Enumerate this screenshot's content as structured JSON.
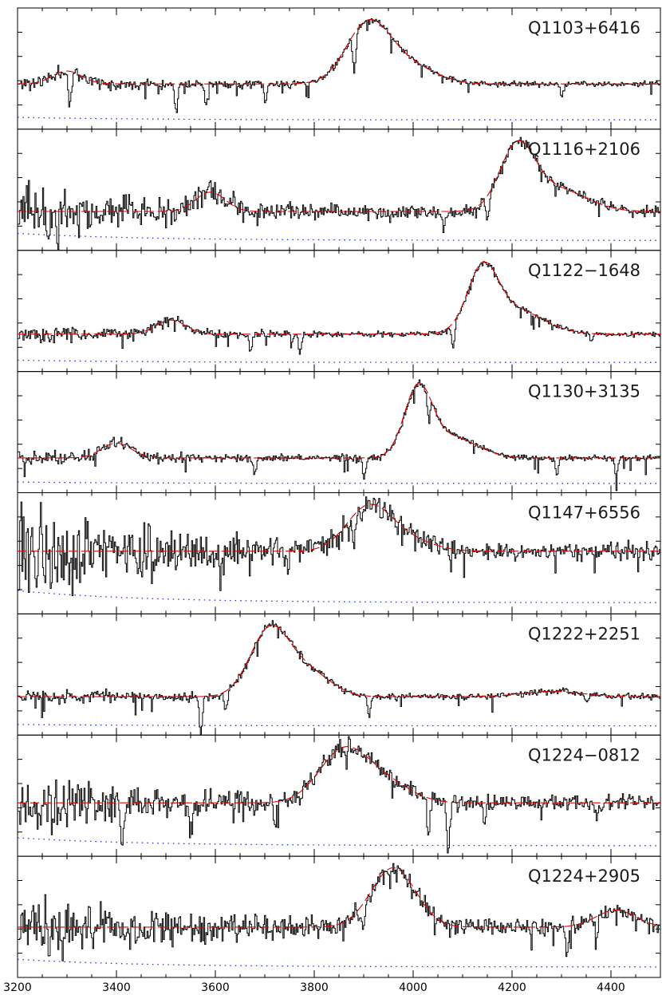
{
  "chart_data": {
    "type": "line",
    "xlim": [
      3200,
      4500
    ],
    "x_ticks": [
      3200,
      3400,
      3600,
      3800,
      4000,
      4200,
      4400
    ],
    "x_tick_labels": [
      "3200",
      "3400",
      "3600",
      "3800",
      "4000",
      "4200",
      "4400"
    ],
    "xlabel": "",
    "ylabel": "",
    "grid": false,
    "colors": {
      "flux": "#000000",
      "fit": "#e00000",
      "error": "#2233dd"
    },
    "panels": [
      {
        "name": "Q1103+6416",
        "seed": 11,
        "baseline": 0.58,
        "blue_noise": 0.06,
        "red_noise": 0.02,
        "noise_falloff": 3500,
        "emission": [
          [
            3300,
            0.2,
            30
          ],
          [
            3910,
            0.95,
            45
          ],
          [
            4000,
            0.25,
            50
          ]
        ],
        "err_level": [
          0.06,
          0.02
        ],
        "absorptions": [
          [
            3305,
            0.55
          ],
          [
            3520,
            0.45
          ],
          [
            3580,
            0.35
          ],
          [
            3700,
            0.3
          ],
          [
            3880,
            0.6
          ],
          [
            4300,
            0.2
          ]
        ]
      },
      {
        "name": "Q1116+2106",
        "seed": 23,
        "baseline": 0.48,
        "blue_noise": 0.22,
        "red_noise": 0.03,
        "noise_falloff": 3550,
        "emission": [
          [
            3590,
            0.3,
            30
          ],
          [
            4210,
            0.95,
            35
          ],
          [
            4290,
            0.35,
            60
          ]
        ],
        "err_level": [
          0.14,
          0.03
        ],
        "absorptions": [
          [
            3260,
            0.5
          ],
          [
            3280,
            0.5
          ],
          [
            4150,
            0.35
          ],
          [
            4060,
            0.25
          ]
        ]
      },
      {
        "name": "Q1122−1648",
        "seed": 37,
        "baseline": 0.52,
        "blue_noise": 0.07,
        "red_noise": 0.02,
        "noise_falloff": 3600,
        "emission": [
          [
            3510,
            0.25,
            30
          ],
          [
            4140,
            1.0,
            30
          ],
          [
            4200,
            0.45,
            60
          ]
        ],
        "err_level": [
          0.06,
          0.02
        ],
        "absorptions": [
          [
            3670,
            0.3
          ],
          [
            3770,
            0.35
          ],
          [
            4080,
            0.45
          ],
          [
            4360,
            0.15
          ]
        ]
      },
      {
        "name": "Q1130+3135",
        "seed": 41,
        "baseline": 0.4,
        "blue_noise": 0.06,
        "red_noise": 0.02,
        "noise_falloff": 3600,
        "emission": [
          [
            3400,
            0.22,
            30
          ],
          [
            4010,
            1.0,
            28
          ],
          [
            4080,
            0.3,
            50
          ]
        ],
        "err_level": [
          0.04,
          0.02
        ],
        "absorptions": [
          [
            3680,
            0.25
          ],
          [
            3900,
            0.3
          ],
          [
            4030,
            0.35
          ],
          [
            4290,
            0.25
          ],
          [
            4410,
            0.25
          ]
        ]
      },
      {
        "name": "Q1147+6556",
        "seed": 53,
        "baseline": 0.5,
        "blue_noise": 0.22,
        "red_noise": 0.04,
        "noise_falloff": 3450,
        "emission": [
          [
            3910,
            0.4,
            45
          ],
          [
            3990,
            0.1,
            50
          ]
        ],
        "err_level": [
          0.14,
          0.03
        ],
        "absorptions": [
          [
            3610,
            0.3
          ],
          [
            3880,
            0.35
          ]
        ]
      },
      {
        "name": "Q1222+2251",
        "seed": 67,
        "baseline": 0.46,
        "blue_noise": 0.06,
        "red_noise": 0.02,
        "noise_falloff": 3550,
        "emission": [
          [
            3710,
            1.0,
            40
          ],
          [
            3790,
            0.35,
            45
          ],
          [
            4280,
            0.08,
            60
          ]
        ],
        "err_level": [
          0.04,
          0.02
        ],
        "absorptions": [
          [
            3570,
            0.55
          ],
          [
            3620,
            0.3
          ],
          [
            3910,
            0.3
          ],
          [
            4350,
            0.1
          ]
        ]
      },
      {
        "name": "Q1224−0812",
        "seed": 79,
        "baseline": 0.52,
        "blue_noise": 0.17,
        "red_noise": 0.04,
        "noise_falloff": 3500,
        "emission": [
          [
            3860,
            0.6,
            50
          ],
          [
            3950,
            0.2,
            50
          ]
        ],
        "err_level": [
          0.12,
          0.03
        ],
        "absorptions": [
          [
            3410,
            0.5
          ],
          [
            3550,
            0.4
          ],
          [
            3720,
            0.3
          ],
          [
            4030,
            0.4
          ],
          [
            4070,
            0.55
          ],
          [
            4370,
            0.15
          ]
        ]
      },
      {
        "name": "Q1224+2905",
        "seed": 97,
        "baseline": 0.5,
        "blue_noise": 0.2,
        "red_noise": 0.04,
        "noise_falloff": 3500,
        "emission": [
          [
            3960,
            0.7,
            45
          ],
          [
            4410,
            0.2,
            40
          ]
        ],
        "err_level": [
          0.12,
          0.03
        ],
        "absorptions": [
          [
            3290,
            0.4
          ],
          [
            3900,
            0.3
          ],
          [
            4310,
            0.3
          ],
          [
            4370,
            0.25
          ]
        ]
      }
    ]
  }
}
